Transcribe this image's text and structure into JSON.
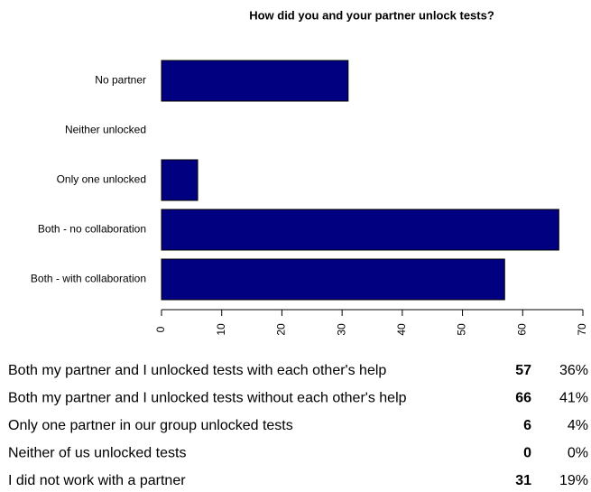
{
  "chart_data": {
    "type": "bar",
    "orientation": "horizontal",
    "title": "How did you and your partner unlock tests?",
    "categories": [
      "No partner",
      "Neither unlocked",
      "Only one unlocked",
      "Both - no collaboration",
      "Both - with collaboration"
    ],
    "values": [
      31,
      0,
      6,
      66,
      57
    ],
    "color": "#000080",
    "xlim": [
      0,
      70
    ],
    "xticks": [
      0,
      10,
      20,
      30,
      40,
      50,
      60,
      70
    ]
  },
  "table": {
    "rows": [
      [
        "Both my partner and I unlocked tests with each other's help",
        "57",
        "36%"
      ],
      [
        "Both my partner and I unlocked tests without each other's help",
        "66",
        "41%"
      ],
      [
        "Only one partner in our group unlocked tests",
        "6",
        "4%"
      ],
      [
        "Neither of us unlocked tests",
        "0",
        "0%"
      ],
      [
        "I did not work with a partner",
        "31",
        "19%"
      ]
    ]
  }
}
